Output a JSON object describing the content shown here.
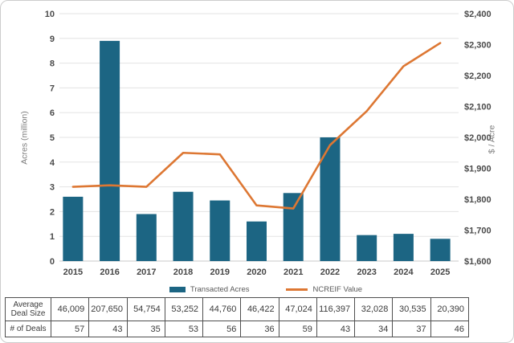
{
  "chart_data": {
    "type": "bar+line",
    "categories": [
      "2015",
      "2016",
      "2017",
      "2018",
      "2019",
      "2020",
      "2021",
      "2022",
      "2023",
      "2024",
      "2025"
    ],
    "series": [
      {
        "name": "Transacted Acres",
        "type": "bar",
        "axis": "left",
        "color": "#1c6583",
        "values": [
          2.6,
          8.9,
          1.9,
          2.8,
          2.45,
          1.6,
          2.75,
          5.0,
          1.05,
          1.1,
          0.9
        ]
      },
      {
        "name": "NCREIF Value",
        "type": "line",
        "axis": "right",
        "color": "#dd7733",
        "values": [
          1840,
          1845,
          1840,
          1950,
          1945,
          1780,
          1770,
          1975,
          2085,
          2230,
          2305
        ]
      }
    ],
    "left_axis": {
      "title": "Acres (million)",
      "min": 0,
      "max": 10,
      "step": 1,
      "ticks": [
        "10",
        "9",
        "8",
        "7",
        "6",
        "5",
        "4",
        "3",
        "2",
        "1",
        "0"
      ]
    },
    "right_axis": {
      "title": "$ / Acre",
      "min": 1600,
      "max": 2400,
      "step": 100,
      "ticks": [
        "$2,400",
        "$2,300",
        "$2,200",
        "$2,100",
        "$2,000",
        "$1,900",
        "$1,800",
        "$1,700",
        "$1,600"
      ]
    },
    "legend": {
      "position": "bottom",
      "entries": [
        "Transacted Acres",
        "NCREIF Value"
      ]
    },
    "grid": true,
    "gridline_color": "#e3e3e3",
    "baseline_color": "#c9c9c9",
    "title": "",
    "xlabel": "",
    "ylabel_left": "Acres (million)",
    "ylabel_right": "$ / Acre"
  },
  "table": {
    "rows": [
      {
        "header": "Average Deal Size",
        "values": [
          "46,009",
          "207,650",
          "54,754",
          "53,252",
          "44,760",
          "46,422",
          "47,024",
          "116,397",
          "32,028",
          "30,535",
          "20,390"
        ]
      },
      {
        "header": "# of Deals",
        "values": [
          "57",
          "43",
          "35",
          "53",
          "56",
          "36",
          "59",
          "43",
          "34",
          "37",
          "46"
        ]
      }
    ]
  }
}
